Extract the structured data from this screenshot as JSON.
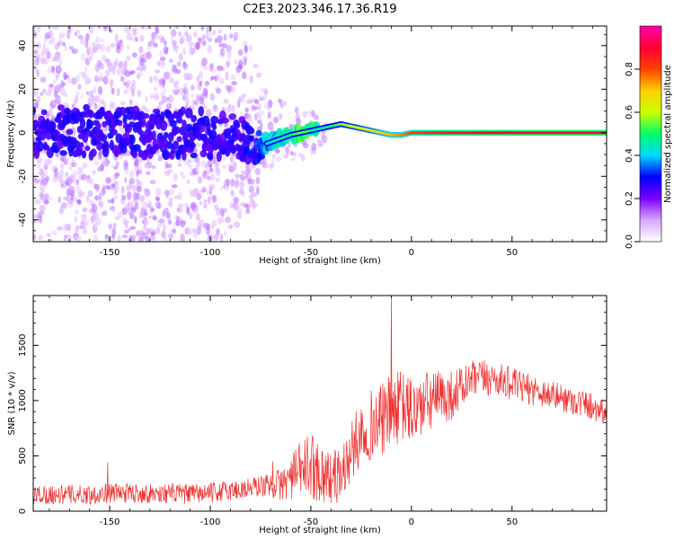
{
  "title": "C2E3.2023.346.17.36.R19",
  "chart_data": [
    {
      "type": "heatmap",
      "xlabel": "Height of straight line (km)",
      "ylabel": "Frequency (Hz)",
      "xlim": [
        -188,
        97
      ],
      "ylim": [
        -50,
        49
      ],
      "x_ticks": [
        -150,
        -100,
        -50,
        0,
        50
      ],
      "y_ticks": [
        -40,
        -20,
        0,
        20,
        40
      ],
      "colorbar": {
        "label": "Normalized spectral amplitude",
        "range": [
          0,
          1
        ],
        "ticks": [
          0.0,
          0.2,
          0.4,
          0.6,
          0.8
        ],
        "tick_labels": [
          "0.0",
          "0.2",
          "0.4",
          "0.6",
          "0.8"
        ],
        "colors": [
          "#ffffff",
          "#d9a6ff",
          "#7a00ff",
          "#0000ff",
          "#00d8ff",
          "#00ff66",
          "#ccff00",
          "#ffd000",
          "#ff4000",
          "#ff0033",
          "#ff00aa"
        ]
      },
      "ridge": {
        "x": [
          -188,
          -170,
          -150,
          -130,
          -110,
          -95,
          -85,
          -78,
          -72,
          -66,
          -60,
          -55,
          -50,
          -45,
          -40,
          -35,
          -30,
          -25,
          -20,
          -15,
          -10,
          -5,
          0,
          10,
          20,
          40,
          60,
          97
        ],
        "y": [
          0,
          1,
          0,
          0,
          0,
          -1,
          -2,
          -7,
          -5,
          -3,
          -1,
          0,
          1,
          2,
          3,
          4,
          3,
          2,
          1,
          0,
          -1,
          -1,
          0,
          0,
          0,
          0,
          0,
          0
        ],
        "amplitude": [
          0.25,
          0.28,
          0.28,
          0.27,
          0.27,
          0.26,
          0.26,
          0.3,
          0.4,
          0.45,
          0.5,
          0.55,
          0.5,
          0.45,
          0.48,
          0.55,
          0.6,
          0.62,
          0.66,
          0.7,
          0.72,
          0.75,
          0.8,
          0.85,
          0.88,
          0.9,
          0.92,
          0.92
        ],
        "noise_spread_hz": [
          45,
          45,
          44,
          43,
          42,
          40,
          35,
          30,
          15,
          12,
          10,
          10,
          8,
          5,
          4,
          3,
          2,
          2,
          2,
          1,
          1,
          1,
          1,
          1,
          1,
          1,
          1,
          1
        ]
      }
    },
    {
      "type": "line",
      "xlabel": "Height of straight line (km)",
      "ylabel": "SNR (10 * v/v)",
      "xlim": [
        -188,
        97
      ],
      "ylim": [
        0,
        1950
      ],
      "x_ticks": [
        -150,
        -100,
        -50,
        0,
        50
      ],
      "y_ticks": [
        0,
        500,
        1000,
        1500
      ],
      "color": "#f03030",
      "series": [
        {
          "x": [
            -188,
            -180,
            -170,
            -160,
            -150,
            -140,
            -130,
            -120,
            -110,
            -100,
            -95,
            -90,
            -85,
            -80,
            -75,
            -70,
            -65,
            -60,
            -55,
            -50,
            -45,
            -40,
            -35,
            -30,
            -25,
            -20,
            -15,
            -10,
            -5,
            0,
            5,
            10,
            20,
            25,
            30,
            35,
            40,
            45,
            50,
            55,
            60,
            70,
            80,
            90,
            97
          ],
          "values": [
            150,
            150,
            150,
            150,
            165,
            165,
            160,
            160,
            155,
            165,
            175,
            185,
            195,
            210,
            230,
            235,
            240,
            300,
            380,
            420,
            350,
            300,
            330,
            520,
            720,
            780,
            820,
            900,
            950,
            900,
            950,
            1000,
            1050,
            1120,
            1180,
            1200,
            1200,
            1180,
            1150,
            1120,
            1100,
            1050,
            1000,
            950,
            900
          ],
          "noise_amplitude": [
            90,
            90,
            90,
            90,
            90,
            90,
            90,
            90,
            90,
            90,
            95,
            100,
            100,
            100,
            100,
            110,
            150,
            200,
            260,
            300,
            280,
            240,
            260,
            280,
            300,
            320,
            330,
            340,
            330,
            320,
            300,
            280,
            230,
            200,
            180,
            170,
            160,
            150,
            150,
            140,
            140,
            130,
            130,
            130,
            130
          ],
          "spikes": [
            {
              "x": -151,
              "y": 440
            },
            {
              "x": -69,
              "y": 450
            },
            {
              "x": -10,
              "y": 1950
            }
          ]
        }
      ]
    }
  ]
}
